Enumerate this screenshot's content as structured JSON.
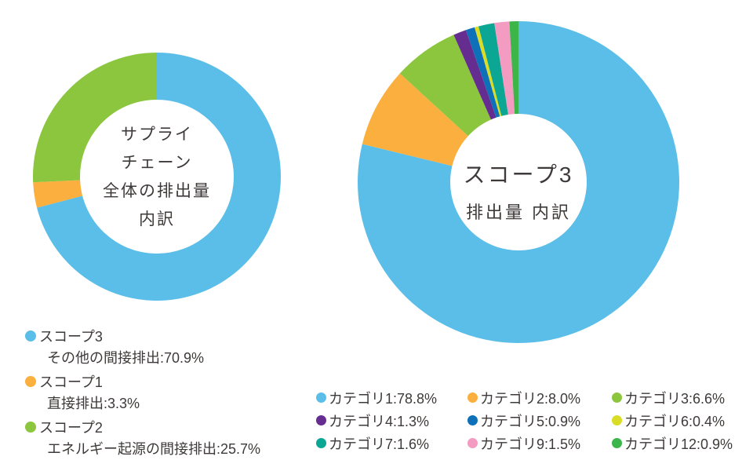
{
  "page": {
    "background": "#ffffff",
    "text_color": "#3e3a39"
  },
  "chart_data": [
    {
      "type": "pie",
      "subtype": "donut",
      "title": "サプライチェーン全体の排出量 内訳",
      "center_label_lines": [
        "サプライ",
        "チェーン",
        "全体の排出量",
        "内訳"
      ],
      "start_angle_deg": 0,
      "direction": "clockwise",
      "legend_position": "bottom-left",
      "slices": [
        {
          "label": "スコープ3",
          "legend_line1": "スコープ3",
          "legend_line2": "その他の間接排出:70.9%",
          "value": 70.9,
          "color": "#5BBEE8"
        },
        {
          "label": "スコープ1",
          "legend_line1": "スコープ1",
          "legend_line2": "直接排出:3.3%",
          "value": 3.3,
          "color": "#FAAF3F"
        },
        {
          "label": "スコープ2",
          "legend_line1": "スコープ2",
          "legend_line2": "エネルギー起源の間接排出:25.7%",
          "value": 25.7,
          "color": "#8CC63F"
        }
      ]
    },
    {
      "type": "pie",
      "subtype": "donut",
      "title": "スコープ3 排出量 内訳",
      "center_label_lines": [
        "スコープ3",
        "排出量 内訳"
      ],
      "start_angle_deg": 0,
      "direction": "clockwise",
      "legend_position": "bottom-grid-3col",
      "slices": [
        {
          "label": "カテゴリ1",
          "legend_text": "カテゴリ1:78.8%",
          "value": 78.8,
          "color": "#5BBEE8"
        },
        {
          "label": "カテゴリ2",
          "legend_text": "カテゴリ2:8.0%",
          "value": 8.0,
          "color": "#FAAF3F"
        },
        {
          "label": "カテゴリ3",
          "legend_text": "カテゴリ3:6.6%",
          "value": 6.6,
          "color": "#8CC63F"
        },
        {
          "label": "カテゴリ4",
          "legend_text": "カテゴリ4:1.3%",
          "value": 1.3,
          "color": "#652D90"
        },
        {
          "label": "カテゴリ5",
          "legend_text": "カテゴリ5:0.9%",
          "value": 0.9,
          "color": "#0D70B8"
        },
        {
          "label": "カテゴリ6",
          "legend_text": "カテゴリ6:0.4%",
          "value": 0.4,
          "color": "#D9DD25"
        },
        {
          "label": "カテゴリ7",
          "legend_text": "カテゴリ7:1.6%",
          "value": 1.6,
          "color": "#0BA794"
        },
        {
          "label": "カテゴリ9",
          "legend_text": "カテゴリ9:1.5%",
          "value": 1.5,
          "color": "#F49BC2"
        },
        {
          "label": "カテゴリ12",
          "legend_text": "カテゴリ12:0.9%",
          "value": 0.9,
          "color": "#3CB54A"
        }
      ]
    }
  ]
}
